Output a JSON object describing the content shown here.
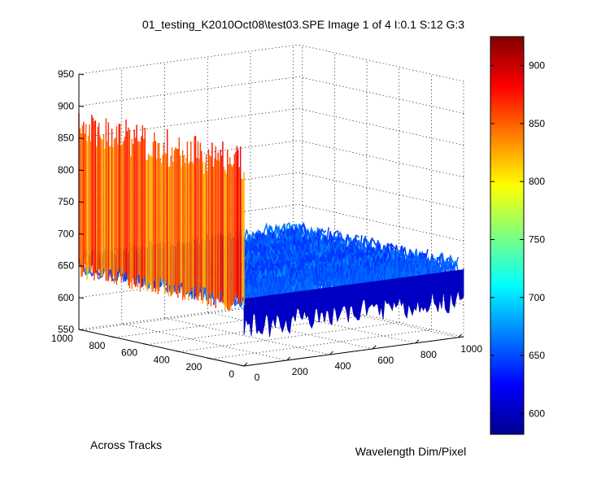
{
  "chart_data": {
    "type": "surface",
    "title": "01_testing_K2010Oct08\\test03.SPE  Image 1 of 4  I:0.1  S:12  G:3",
    "xlabel": "Wavelength Dim/Pixel",
    "ylabel": "Across Tracks",
    "zlabel": "",
    "xlim": [
      0,
      1024
    ],
    "ylim": [
      0,
      1024
    ],
    "zlim": [
      550,
      950
    ],
    "x_ticks": [
      "0",
      "200",
      "400",
      "600",
      "800",
      "1000"
    ],
    "y_ticks": [
      "0",
      "200",
      "400",
      "600",
      "800",
      "1000"
    ],
    "z_ticks": [
      "550",
      "600",
      "650",
      "700",
      "750",
      "800",
      "850",
      "900",
      "950"
    ],
    "colormap": "jet",
    "color_range": [
      582,
      925
    ],
    "colorbar_ticks": [
      "600",
      "650",
      "700",
      "750",
      "800",
      "850",
      "900"
    ],
    "grid": true,
    "description_values": {
      "background_level": 655,
      "edge_column_x": 0,
      "edge_column_level": 865
    }
  }
}
